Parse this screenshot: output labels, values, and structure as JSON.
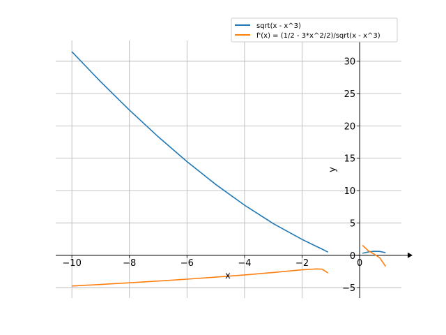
{
  "chart_data": {
    "type": "line",
    "title": "",
    "xlabel": "x",
    "ylabel": "y",
    "xlim": [
      -10.56,
      1.45
    ],
    "ylim": [
      -6.6,
      33.2
    ],
    "grid": true,
    "legend_position": "top-right",
    "xticks": [
      -10,
      -8,
      -6,
      -4,
      -2,
      0
    ],
    "xtick_labels": [
      "−10",
      "−8",
      "−6",
      "−4",
      "−2",
      "0"
    ],
    "yticks": [
      -5,
      0,
      5,
      10,
      15,
      20,
      25,
      30
    ],
    "ytick_labels": [
      "−5",
      "0",
      "5",
      "10",
      "15",
      "20",
      "25",
      "30"
    ],
    "series": [
      {
        "name": "sqrt(x - x^3)",
        "color": "#1f77b4",
        "segments": [
          {
            "x": [
              -10,
              -9,
              -8,
              -7,
              -6,
              -5,
              -4,
              -3,
              -2,
              -1.5,
              -1.3,
              -1.1
            ],
            "y": [
              31.46,
              26.83,
              22.45,
              18.33,
              14.49,
              10.95,
              7.75,
              4.9,
              2.45,
              1.37,
              0.947,
              0.481
            ]
          },
          {
            "x": [
              0.1,
              0.3,
              0.5,
              0.7,
              0.9
            ],
            "y": [
              0.315,
              0.522,
              0.612,
              0.597,
              0.414
            ]
          }
        ]
      },
      {
        "name": "f'(x) = (1/2 - 3*x^2/2)/sqrt(x - x^3)",
        "color": "#ff7f0e",
        "segments": [
          {
            "x": [
              -10,
              -9,
              -8,
              -7,
              -6,
              -5,
              -4,
              -3,
              -2,
              -1.5,
              -1.3,
              -1.1
            ],
            "y": [
              -4.75,
              -4.51,
              -4.25,
              -3.98,
              -3.69,
              -3.38,
              -3.03,
              -2.65,
              -2.24,
              -2.1,
              -2.15,
              -2.74
            ]
          },
          {
            "x": [
              0.1,
              0.3,
              0.5,
              0.7,
              0.9
            ],
            "y": [
              1.54,
              0.7,
              0.2,
              -0.39,
              -1.73
            ]
          }
        ]
      }
    ]
  }
}
